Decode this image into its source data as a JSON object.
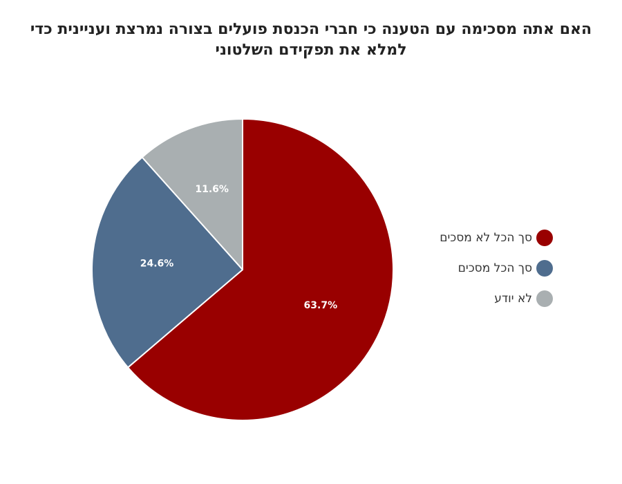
{
  "chart_data": {
    "type": "pie",
    "title_lines": [
      "האם אתה מסכימה עם הטענה כי חברי הכנסת פועלים בצורה נמרצת ועניינית כדי",
      "למלא את תפקידם השלטוני"
    ],
    "slices": [
      {
        "label": "סך הכל לא מסכים",
        "value": 63.7,
        "value_label": "63.7%",
        "color": "#990000"
      },
      {
        "label": "סך הכל מסכים",
        "value": 24.6,
        "value_label": "24.6%",
        "color": "#4f6d8e"
      },
      {
        "label": "לא יודע",
        "value": 11.6,
        "value_label": "11.6%",
        "color": "#a9afb1"
      }
    ],
    "start": "12 o'clock",
    "direction": "clockwise",
    "legend_position": "right"
  }
}
